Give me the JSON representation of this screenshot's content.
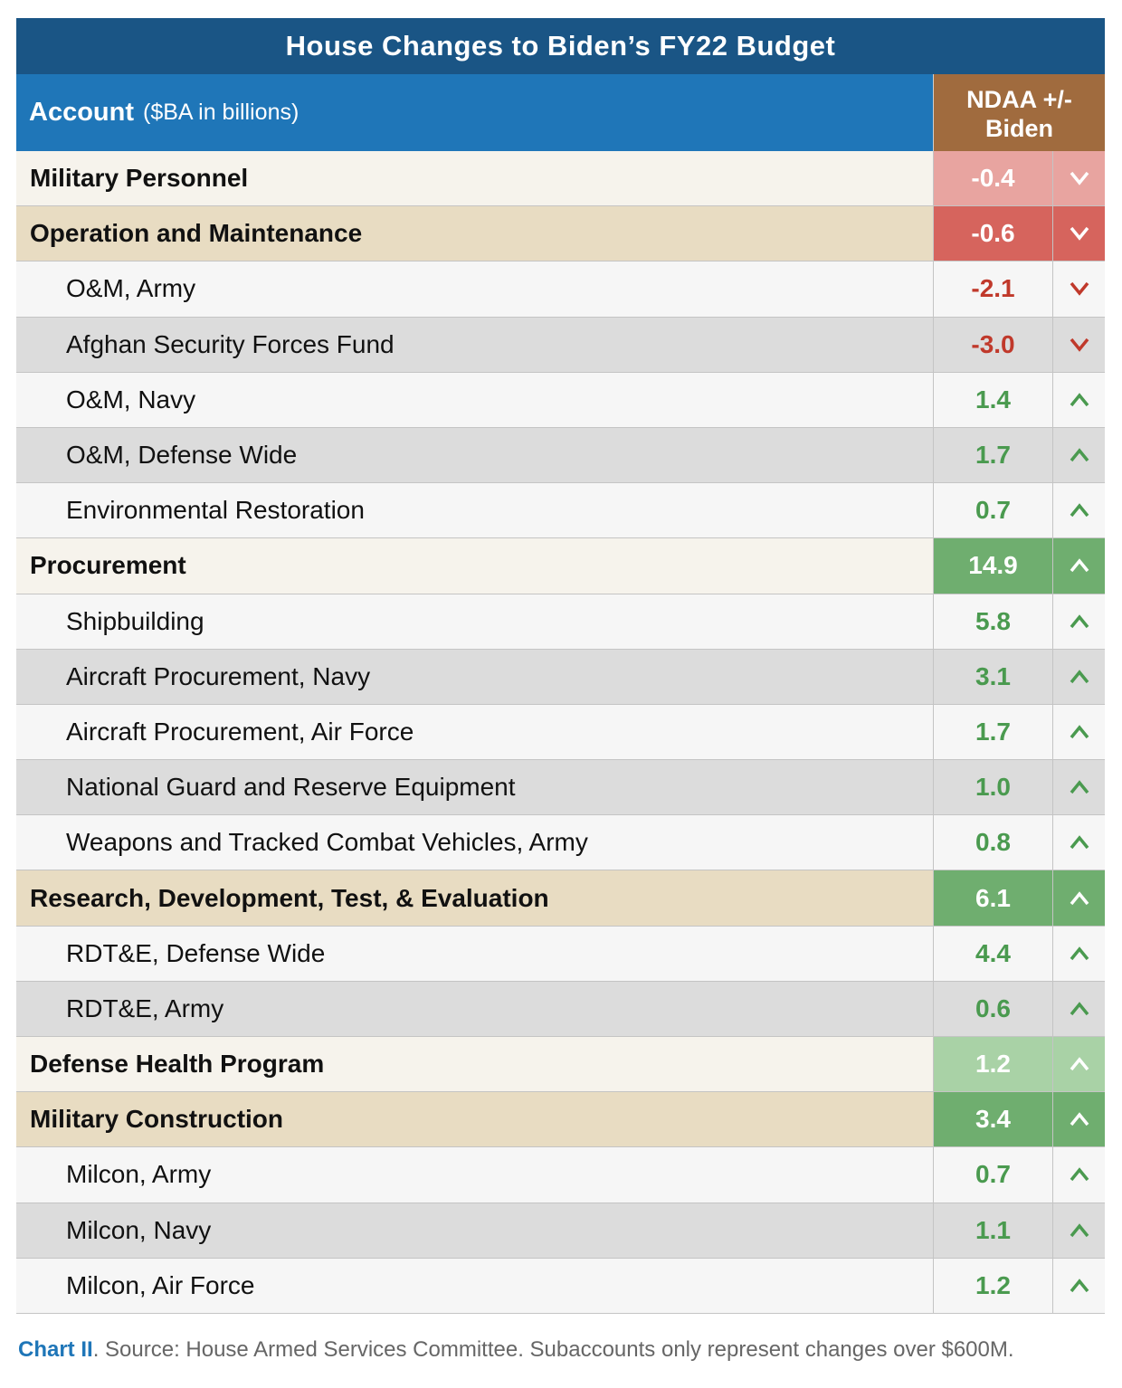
{
  "chart_data": {
    "type": "table",
    "title": "House Changes to Biden’s FY22 Budget",
    "columns": {
      "account_label": "Account",
      "account_unit": "($BA in billions)",
      "change_label_line1": "NDAA +/-",
      "change_label_line2": "Biden"
    },
    "rows": [
      {
        "label": "Military Personnel",
        "value": "-0.4",
        "level": "major",
        "direction": "down"
      },
      {
        "label": "Operation and Maintenance",
        "value": "-0.6",
        "level": "major",
        "direction": "down"
      },
      {
        "label": "O&M, Army",
        "value": "-2.1",
        "level": "sub",
        "direction": "down"
      },
      {
        "label": "Afghan Security Forces Fund",
        "value": "-3.0",
        "level": "sub",
        "direction": "down"
      },
      {
        "label": "O&M, Navy",
        "value": "1.4",
        "level": "sub",
        "direction": "up"
      },
      {
        "label": "O&M, Defense Wide",
        "value": "1.7",
        "level": "sub",
        "direction": "up"
      },
      {
        "label": "Environmental Restoration",
        "value": "0.7",
        "level": "sub",
        "direction": "up"
      },
      {
        "label": "Procurement",
        "value": "14.9",
        "level": "major",
        "direction": "up"
      },
      {
        "label": "Shipbuilding",
        "value": "5.8",
        "level": "sub",
        "direction": "up"
      },
      {
        "label": "Aircraft Procurement, Navy",
        "value": "3.1",
        "level": "sub",
        "direction": "up"
      },
      {
        "label": "Aircraft Procurement, Air Force",
        "value": "1.7",
        "level": "sub",
        "direction": "up"
      },
      {
        "label": "National Guard and Reserve Equipment",
        "value": "1.0",
        "level": "sub",
        "direction": "up"
      },
      {
        "label": "Weapons and Tracked Combat Vehicles, Army",
        "value": "0.8",
        "level": "sub",
        "direction": "up"
      },
      {
        "label": "Research, Development, Test, & Evaluation",
        "value": "6.1",
        "level": "major",
        "direction": "up"
      },
      {
        "label": "RDT&E, Defense Wide",
        "value": "4.4",
        "level": "sub",
        "direction": "up"
      },
      {
        "label": "RDT&E, Army",
        "value": "0.6",
        "level": "sub",
        "direction": "up"
      },
      {
        "label": "Defense Health Program",
        "value": "1.2",
        "level": "major",
        "direction": "up"
      },
      {
        "label": "Military Construction",
        "value": "3.4",
        "level": "major",
        "direction": "up"
      },
      {
        "label": "Milcon, Army",
        "value": "0.7",
        "level": "sub",
        "direction": "up"
      },
      {
        "label": "Milcon, Navy",
        "value": "1.1",
        "level": "sub",
        "direction": "up"
      },
      {
        "label": "Milcon, Air Force",
        "value": "1.2",
        "level": "sub",
        "direction": "up"
      }
    ]
  },
  "footer": {
    "chart_label": "Chart II",
    "source_text": ". Source: House Armed Services Committee. Subaccounts only represent changes over $600M."
  },
  "colors": {
    "title_bg": "#1a5585",
    "header_bg": "#1f76b8",
    "ndaa_header_bg": "#a06b3e",
    "negative_text": "#c0392b",
    "positive_text": "#4a9a4f",
    "major_light_bg": "#f6f3ec",
    "major_tan_bg": "#e8dcc2",
    "sub_white_bg": "#f6f6f6",
    "sub_grey_bg": "#dcdcdc"
  }
}
